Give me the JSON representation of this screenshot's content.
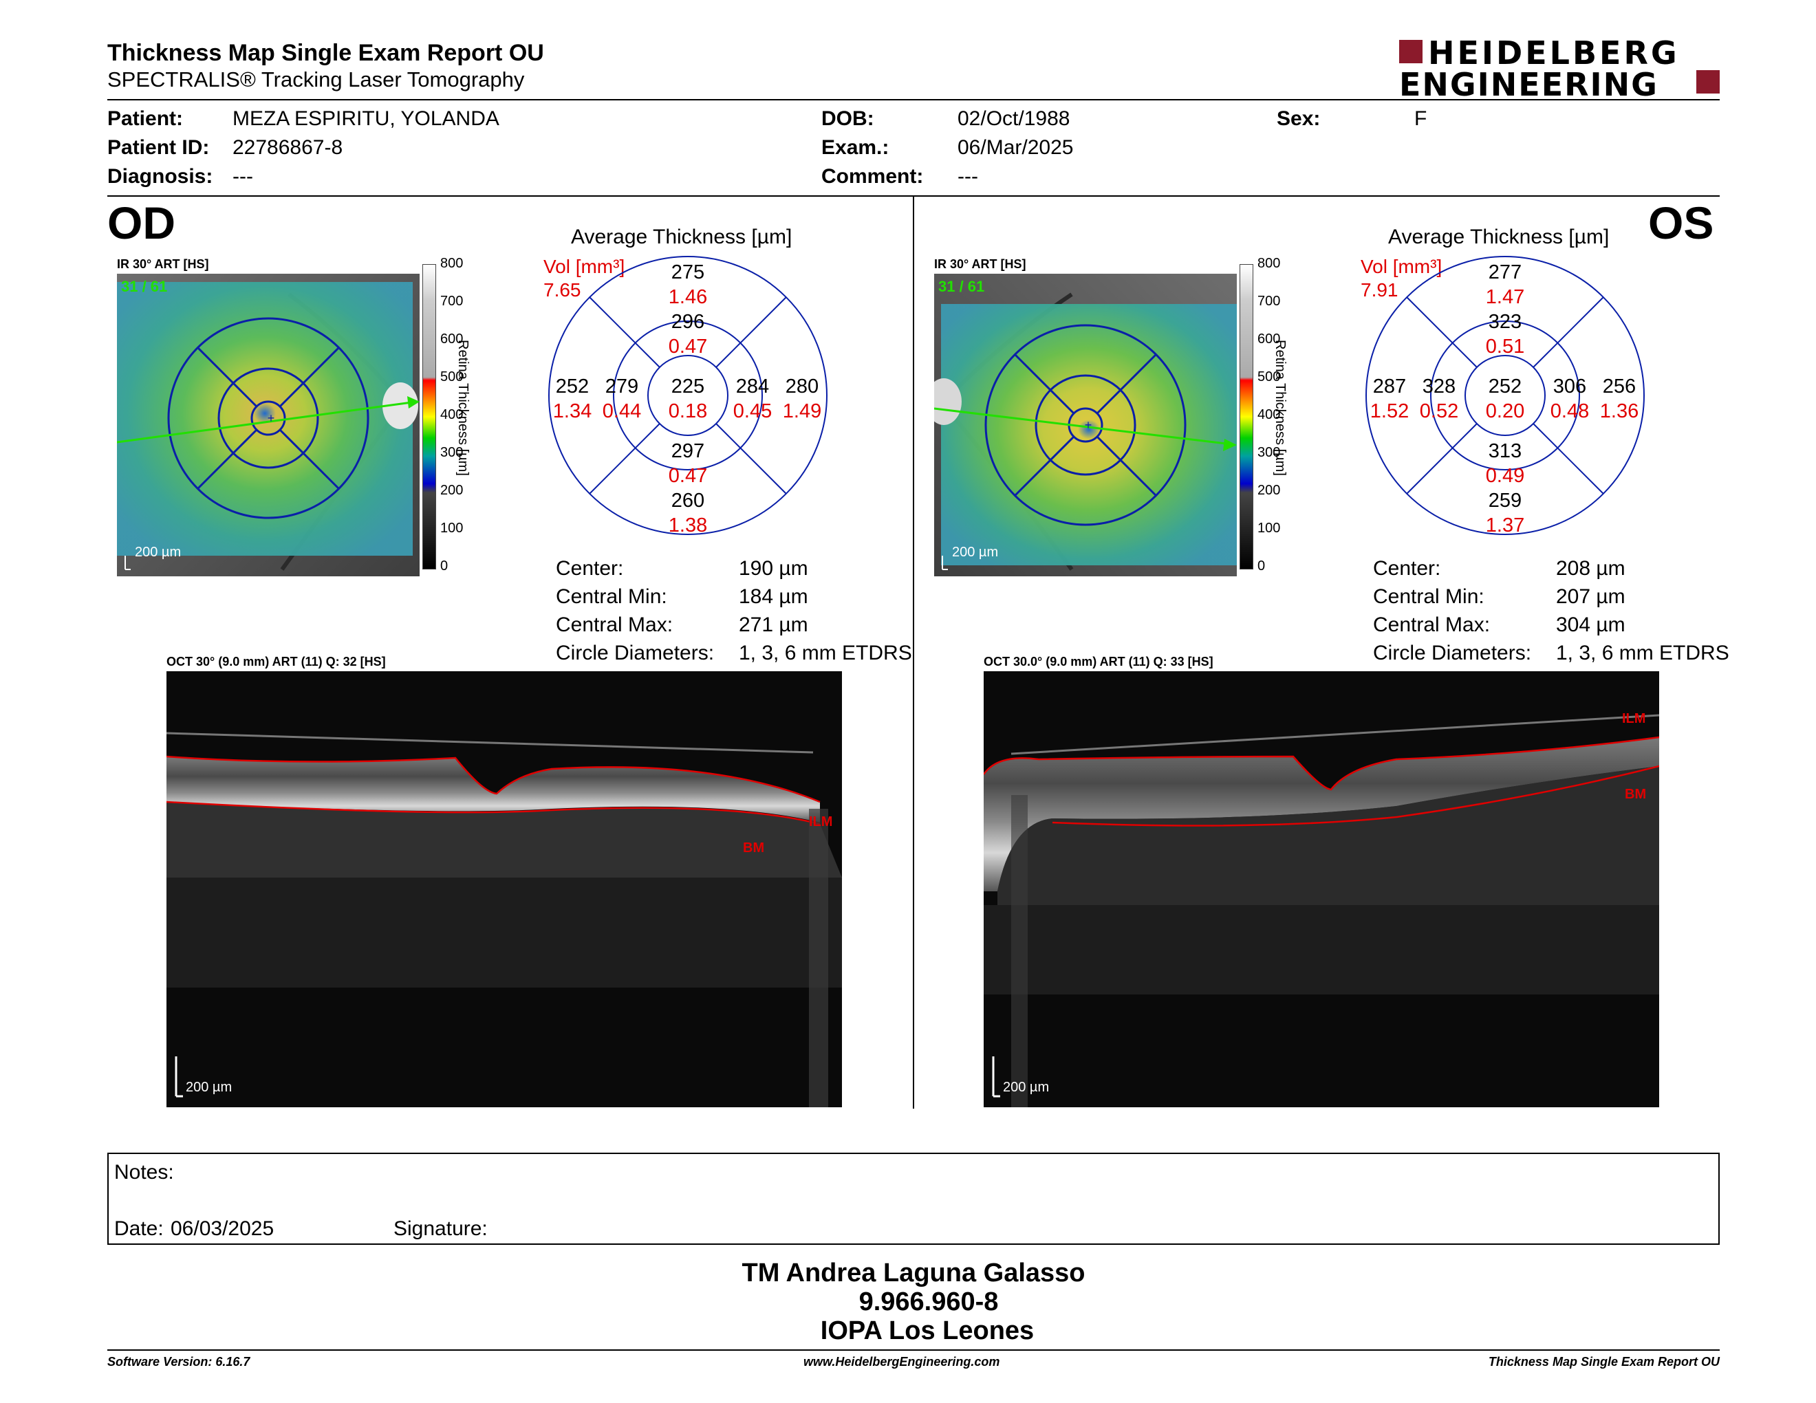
{
  "header": {
    "title": "Thickness Map Single Exam Report OU",
    "subtitle": "SPECTRALIS® Tracking Laser Tomography",
    "logo_line1": "HEIDELBERG",
    "logo_line2": "ENGINEERING"
  },
  "patient": {
    "patient_label": "Patient:",
    "patient_value": "MEZA ESPIRITU, YOLANDA",
    "id_label": "Patient ID:",
    "id_value": "22786867-8",
    "diagnosis_label": "Diagnosis:",
    "diagnosis_value": "---",
    "dob_label": "DOB:",
    "dob_value": "02/Oct/1988",
    "exam_label": "Exam.:",
    "exam_value": "06/Mar/2025",
    "comment_label": "Comment:",
    "comment_value": "---",
    "sex_label": "Sex:",
    "sex_value": "F"
  },
  "od": {
    "eye": "OD",
    "ir_label": "IR 30° ART [HS]",
    "ir_counter": "31 / 61",
    "scale": "200 µm",
    "avg_title": "Average Thickness [µm]",
    "vol_label": "Vol [mm³]",
    "vol_total": "7.65",
    "sectors": {
      "outer_top": [
        "275",
        "1.46"
      ],
      "inner_top": [
        "296",
        "0.47"
      ],
      "outer_left": [
        "252",
        "1.34"
      ],
      "inner_left": [
        "279",
        "0.44"
      ],
      "center": [
        "225",
        "0.18"
      ],
      "inner_right": [
        "284",
        "0.45"
      ],
      "outer_right": [
        "280",
        "1.49"
      ],
      "inner_bottom": [
        "297",
        "0.47"
      ],
      "outer_bottom": [
        "260",
        "1.38"
      ]
    },
    "stats": {
      "center_label": "Center:",
      "center_value": "190 µm",
      "min_label": "Central Min:",
      "min_value": "184 µm",
      "max_label": "Central Max:",
      "max_value": "271 µm",
      "diam_label": "Circle Diameters:",
      "diam_value": "1, 3, 6 mm ETDRS"
    },
    "oct_label": "OCT 30° (9.0 mm) ART (11) Q: 32 [HS]",
    "ilm": "ILM",
    "bm": "BM"
  },
  "os": {
    "eye": "OS",
    "ir_label": "IR 30° ART [HS]",
    "ir_counter": "31 / 61",
    "scale": "200 µm",
    "avg_title": "Average Thickness [µm]",
    "vol_label": "Vol [mm³]",
    "vol_total": "7.91",
    "sectors": {
      "outer_top": [
        "277",
        "1.47"
      ],
      "inner_top": [
        "323",
        "0.51"
      ],
      "outer_left": [
        "287",
        "1.52"
      ],
      "inner_left": [
        "328",
        "0.52"
      ],
      "center": [
        "252",
        "0.20"
      ],
      "inner_right": [
        "306",
        "0.48"
      ],
      "outer_right": [
        "256",
        "1.36"
      ],
      "inner_bottom": [
        "313",
        "0.49"
      ],
      "outer_bottom": [
        "259",
        "1.37"
      ]
    },
    "stats": {
      "center_label": "Center:",
      "center_value": "208 µm",
      "min_label": "Central Min:",
      "min_value": "207 µm",
      "max_label": "Central Max:",
      "max_value": "304 µm",
      "diam_label": "Circle Diameters:",
      "diam_value": "1, 3, 6 mm ETDRS"
    },
    "oct_label": "OCT 30.0° (9.0 mm) ART (11) Q: 33 [HS]",
    "ilm": "ILM",
    "bm": "BM"
  },
  "colorbar": {
    "ticks": [
      "800",
      "700",
      "600",
      "500",
      "400",
      "300",
      "200",
      "100",
      "0"
    ],
    "title": "Retina Thickness [µm]"
  },
  "notes": {
    "notes_label": "Notes:",
    "date_label": "Date:",
    "date_value": "06/03/2025",
    "signature_label": "Signature:"
  },
  "signature_block": {
    "line1": "TM Andrea Laguna Galasso",
    "line2": "9.966.960-8",
    "line3": "IOPA Los Leones"
  },
  "footer": {
    "software": "Software Version: 6.16.7",
    "website": "www.HeidelbergEngineering.com",
    "report": "Thickness Map Single Exam Report OU"
  },
  "colors": {
    "accent_red": "#8b1a2b",
    "value_red": "#e00000",
    "grid_blue": "#0a1fa8",
    "scan_green": "#22e000"
  }
}
